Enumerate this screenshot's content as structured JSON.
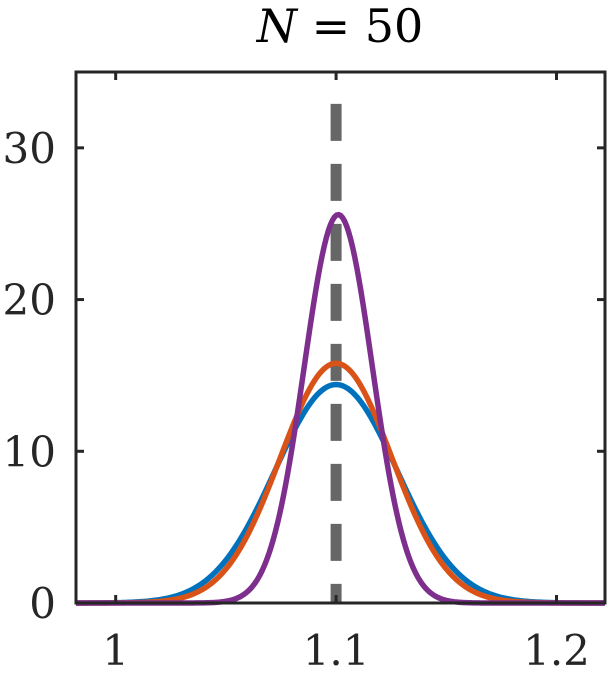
{
  "chart_data": {
    "type": "line",
    "title_var": "N",
    "title_rest": " = 50",
    "xlim": [
      0.982,
      1.222
    ],
    "ylim": [
      0,
      35
    ],
    "xticks": [
      1,
      1.1,
      1.2
    ],
    "xtick_labels": [
      "1",
      "1.1",
      "1.2"
    ],
    "yticks": [
      0,
      10,
      20,
      30
    ],
    "ytick_labels": [
      "0",
      "10",
      "20",
      "30"
    ],
    "grid": false,
    "reference_line": {
      "x": 1.1,
      "style": "dashed",
      "color": "#666666"
    },
    "series": [
      {
        "color": "#0072BD",
        "mean": 1.1,
        "sd": 0.0277,
        "peak": 14.4
      },
      {
        "color": "#D95319",
        "mean": 1.1,
        "sd": 0.0253,
        "peak": 15.8
      },
      {
        "color": "#7E2F8E",
        "mean": 1.101,
        "sd": 0.0155,
        "peak": 25.6
      }
    ]
  }
}
